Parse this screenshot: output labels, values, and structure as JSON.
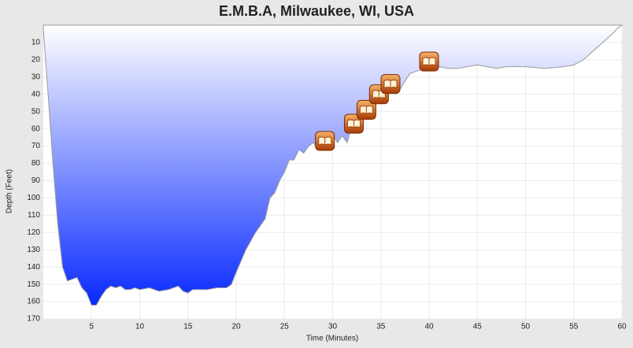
{
  "chart_data": {
    "type": "area",
    "title": "E.M.B.A, Milwaukee, WI, USA",
    "xlabel": "Time (Minutes)",
    "ylabel": "Depth (Feet)",
    "x": [
      0,
      0.5,
      1,
      1.5,
      2,
      2.5,
      3,
      3.5,
      4,
      4.5,
      5,
      5.5,
      6,
      6.5,
      7,
      7.5,
      8,
      8.5,
      9,
      9.5,
      10,
      11,
      12,
      13,
      14,
      14.5,
      15,
      15.5,
      16,
      17,
      18,
      19,
      19.5,
      20,
      21,
      22,
      23,
      23.5,
      24,
      24.5,
      25,
      25.5,
      26,
      26.5,
      27,
      27.5,
      28,
      28.5,
      29,
      30,
      30.5,
      31,
      31.5,
      32,
      32.5,
      33,
      34,
      34.5,
      35,
      35.5,
      36,
      36.5,
      37,
      38,
      39,
      40,
      41,
      42,
      43,
      44,
      45,
      46,
      47,
      48,
      50,
      52,
      54,
      55,
      56,
      57,
      58,
      59,
      59.5,
      60
    ],
    "values": [
      2,
      40,
      80,
      115,
      140,
      148,
      147,
      146,
      152,
      155,
      162,
      162,
      157,
      153,
      151,
      152,
      151,
      153,
      153,
      152,
      153,
      152,
      154,
      153,
      151,
      154,
      155,
      153,
      153,
      153,
      152,
      152,
      150,
      143,
      130,
      120,
      112,
      100,
      97,
      90,
      85,
      78,
      78,
      72,
      74,
      70,
      68,
      72,
      66,
      63,
      68,
      64,
      68,
      58,
      52,
      50,
      45,
      42,
      40,
      38,
      35,
      40,
      37,
      28,
      26,
      22,
      24,
      25,
      25,
      24,
      23,
      24,
      25,
      24,
      24,
      25,
      24,
      23,
      20,
      15,
      10,
      5,
      2,
      0
    ],
    "color": "#0022ff",
    "markers": [
      {
        "x": 29.2,
        "y": 67
      },
      {
        "x": 32.2,
        "y": 57
      },
      {
        "x": 33.5,
        "y": 49
      },
      {
        "x": 34.8,
        "y": 40
      },
      {
        "x": 36,
        "y": 34
      },
      {
        "x": 40,
        "y": 21
      }
    ],
    "xlim": [
      0,
      60
    ],
    "ylim": [
      0,
      170
    ],
    "y_inverted": true,
    "xticks": [
      5,
      10,
      15,
      20,
      25,
      30,
      35,
      40,
      45,
      50,
      55,
      60
    ],
    "yticks": [
      10,
      20,
      30,
      40,
      50,
      60,
      70,
      80,
      90,
      100,
      110,
      120,
      130,
      140,
      150,
      160,
      170
    ],
    "grid": true
  }
}
